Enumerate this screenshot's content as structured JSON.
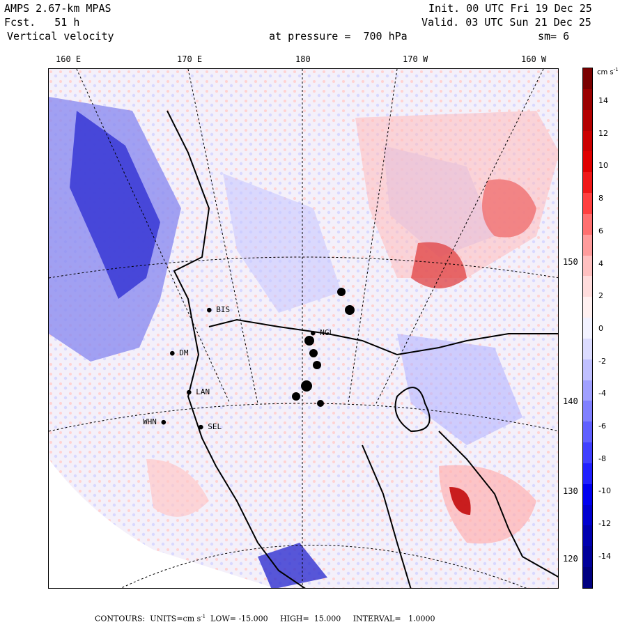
{
  "header": {
    "model": "AMPS 2.67-km MPAS",
    "forecast": "Fcst.   51 h",
    "variable": "Vertical velocity",
    "pressure": "at pressure =  700 hPa",
    "init": "Init. 00 UTC Fri 19 Dec 25",
    "valid": "Valid. 03 UTC Sun 21 Dec 25",
    "smoothing": "sm= 6"
  },
  "longitude_labels": [
    "160 E",
    "170 E",
    "180",
    "170 W",
    "160 W"
  ],
  "latitude_labels": [
    "150 W",
    "140 W",
    "130 W",
    "120 W"
  ],
  "stations": [
    {
      "id": "BIS"
    },
    {
      "id": "NGL"
    },
    {
      "id": "DM"
    },
    {
      "id": "LAN"
    },
    {
      "id": "WHN"
    },
    {
      "id": "SEL"
    }
  ],
  "colorbar": {
    "units": "cm s",
    "units_exp": "-1",
    "ticks": [
      "14",
      "12",
      "10",
      "8",
      "6",
      "4",
      "2",
      "0",
      "-2",
      "-4",
      "-6",
      "-8",
      "-10",
      "-12",
      "-14"
    ],
    "colors": [
      "#7a0000",
      "#9b0000",
      "#b40000",
      "#cc0000",
      "#e00000",
      "#f01818",
      "#ff4040",
      "#ff7070",
      "#ff9c9c",
      "#ffc0c0",
      "#ffdcdc",
      "#fff0f0",
      "#f2f2ff",
      "#dcdcff",
      "#c0c0ff",
      "#a0a0ff",
      "#8080ff",
      "#6060ff",
      "#4040ff",
      "#2020ff",
      "#0000f0",
      "#0000d0",
      "#0000b0",
      "#00009a",
      "#000080"
    ]
  },
  "footer": {
    "label": "CONTOURS:",
    "units": "UNITS=cm s",
    "units_exp": "-1",
    "low": "LOW= -15.000",
    "high": "HIGH=  15.000",
    "interval": "INTERVAL=   1.0000"
  }
}
